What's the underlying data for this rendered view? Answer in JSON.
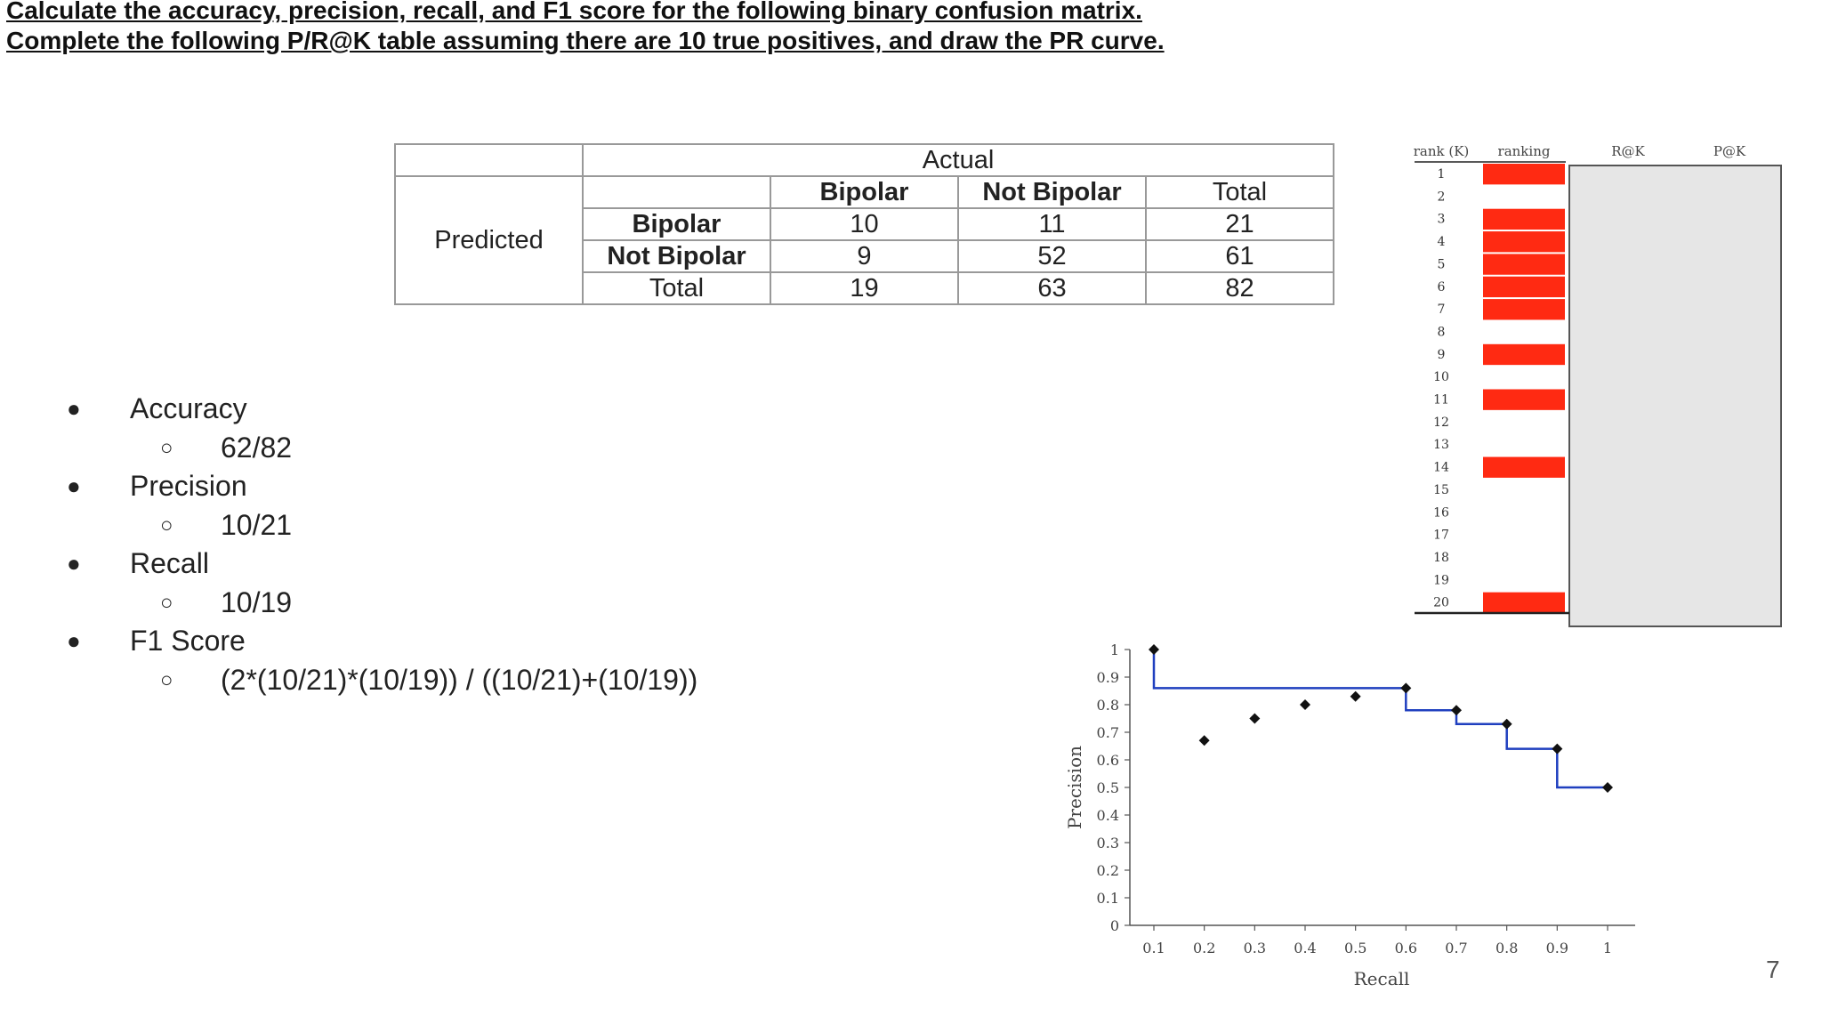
{
  "header": {
    "line1": "Calculate the accuracy, precision, recall, and F1 score for the following binary confusion matrix.",
    "line2": "Complete the following P/R@K table assuming there are 10 true positives, and draw the PR curve."
  },
  "confusion_matrix": {
    "actual_label": "Actual",
    "predicted_label": "Predicted",
    "col_headers": [
      "Bipolar",
      "Not Bipolar",
      "Total"
    ],
    "rows": [
      {
        "label": "Bipolar",
        "values": [
          "10",
          "11",
          "21"
        ]
      },
      {
        "label": "Not Bipolar",
        "values": [
          "9",
          "52",
          "61"
        ]
      },
      {
        "label": "Total",
        "values": [
          "19",
          "63",
          "82"
        ]
      }
    ]
  },
  "answers": [
    {
      "label": "Accuracy",
      "value": "62/82"
    },
    {
      "label": "Precision",
      "value": "10/21"
    },
    {
      "label": "Recall",
      "value": "10/19"
    },
    {
      "label": "F1 Score",
      "value": "(2*(10/21)*(10/19)) / ((10/21)+(10/19))"
    }
  ],
  "page_number": "7",
  "colors": {
    "relevant": "#ff2a12",
    "curve": "#1f3fbf",
    "points": "#111111",
    "panel": "#e6e6e6"
  },
  "chart_data": [
    {
      "type": "table",
      "columns": [
        "rank (K)",
        "ranking",
        "R@K",
        "P@K"
      ],
      "ranks": [
        "1",
        "2",
        "3",
        "4",
        "5",
        "6",
        "7",
        "8",
        "9",
        "10",
        "11",
        "12",
        "13",
        "14",
        "15",
        "16",
        "17",
        "18",
        "19",
        "20"
      ],
      "relevant_ranks": [
        1,
        3,
        4,
        5,
        6,
        7,
        9,
        11,
        14,
        20
      ]
    },
    {
      "type": "scatter",
      "xlabel": "Recall",
      "ylabel": "Precision",
      "xlim": [
        0.1,
        1
      ],
      "ylim": [
        0,
        1
      ],
      "x_ticks": [
        "0.1",
        "0.2",
        "0.3",
        "0.4",
        "0.5",
        "0.6",
        "0.7",
        "0.8",
        "0.9",
        "1"
      ],
      "y_ticks": [
        "0",
        "0.1",
        "0.2",
        "0.3",
        "0.4",
        "0.5",
        "0.6",
        "0.7",
        "0.8",
        "0.9",
        "1"
      ],
      "points": [
        {
          "x": 0.1,
          "y": 1.0
        },
        {
          "x": 0.2,
          "y": 0.67
        },
        {
          "x": 0.3,
          "y": 0.75
        },
        {
          "x": 0.4,
          "y": 0.8
        },
        {
          "x": 0.5,
          "y": 0.83
        },
        {
          "x": 0.6,
          "y": 0.86
        },
        {
          "x": 0.7,
          "y": 0.78
        },
        {
          "x": 0.8,
          "y": 0.73
        },
        {
          "x": 0.9,
          "y": 0.64
        },
        {
          "x": 1.0,
          "y": 0.5
        }
      ],
      "interpolated": [
        {
          "x": 0.1,
          "y": 1.0
        },
        {
          "x": 0.1,
          "y": 0.86
        },
        {
          "x": 0.6,
          "y": 0.86
        },
        {
          "x": 0.6,
          "y": 0.78
        },
        {
          "x": 0.7,
          "y": 0.78
        },
        {
          "x": 0.7,
          "y": 0.73
        },
        {
          "x": 0.8,
          "y": 0.73
        },
        {
          "x": 0.8,
          "y": 0.64
        },
        {
          "x": 0.9,
          "y": 0.64
        },
        {
          "x": 0.9,
          "y": 0.5
        },
        {
          "x": 1.0,
          "y": 0.5
        }
      ]
    }
  ]
}
